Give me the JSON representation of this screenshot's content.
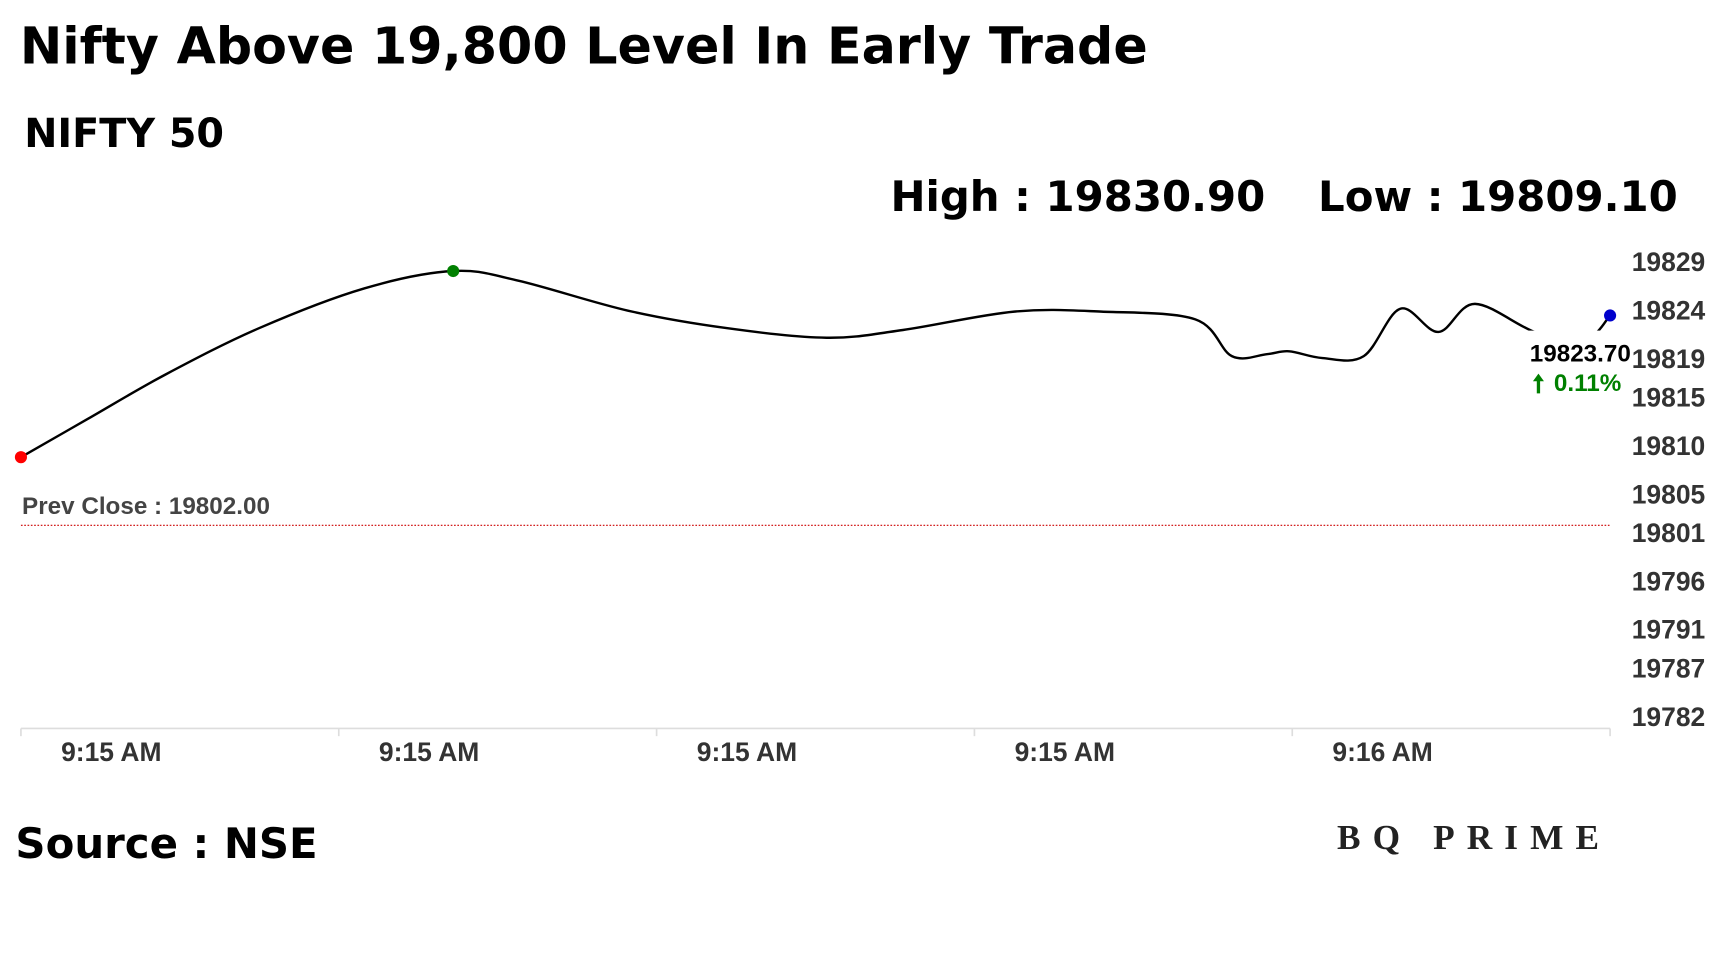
{
  "chart_data": {
    "type": "line",
    "title": "Nifty Above 19,800 Level In Early Trade",
    "subtitle": "NIFTY 50",
    "high_label": "High : 19830.90",
    "low_label": "Low : 19809.10",
    "source": "Source : NSE",
    "brand": "BQ PRIME",
    "x": [
      0,
      4.2,
      9.1,
      15,
      21.6,
      27.2,
      31.3,
      38.2,
      44.4,
      50.7,
      55.5,
      62.5,
      68,
      73.9,
      76.2,
      78.4,
      79.8,
      81.9,
      84.5,
      86.8,
      89.2,
      91.5,
      95.4,
      98.5,
      100
    ],
    "series": [
      {
        "name": "NIFTY 50",
        "color": "#000000",
        "values": [
          19809.05,
          19813.0,
          19817.6,
          19822.4,
          19826.5,
          19828.3,
          19827.3,
          19824.2,
          19822.4,
          19821.4,
          19822.2,
          19824.1,
          19824.1,
          19823.3,
          19819.5,
          19819.7,
          19820.0,
          19819.3,
          19819.5,
          19824.4,
          19822.0,
          19824.9,
          19821.9,
          19821.3,
          19823.7
        ]
      }
    ],
    "last_value_label": "19823.70",
    "change_label": "0.11%",
    "change_color": "#008000",
    "start_color": "#ff0000",
    "peak_color": "#008000",
    "end_color": "#0000cc",
    "reference_line": {
      "value": 19802,
      "label": "Prev Close : 19802.00",
      "color": "#cc0000"
    },
    "xlim": [
      0,
      100
    ],
    "xticks": [
      {
        "value": 0,
        "label": "9:15 AM"
      },
      {
        "value": 20,
        "label": "9:15 AM"
      },
      {
        "value": 40,
        "label": "9:15 AM"
      },
      {
        "value": 60,
        "label": "9:15 AM"
      },
      {
        "value": 80,
        "label": "9:16 AM"
      }
    ],
    "ylim": [
      19781,
      19830
    ],
    "yticks": [
      19829,
      19824,
      19819,
      19815,
      19810,
      19805,
      19801,
      19796,
      19791,
      19787,
      19782
    ]
  }
}
